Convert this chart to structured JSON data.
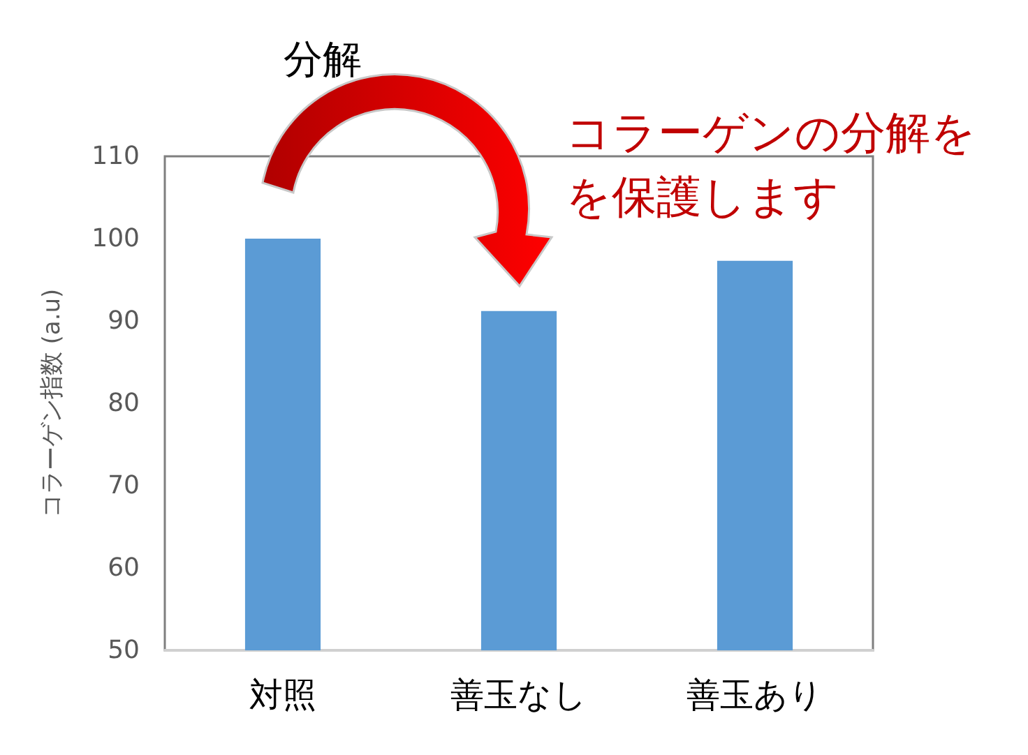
{
  "chart_data": {
    "type": "bar",
    "ylabel": "コラーゲン指数 (a.u)",
    "categories": [
      "対照",
      "善玉なし",
      "善玉あり"
    ],
    "values": [
      100,
      91.2,
      97.3
    ],
    "color": "#5b9bd5",
    "ylim": [
      50,
      110
    ],
    "yticks": [
      50,
      60,
      70,
      80,
      90,
      100,
      110
    ],
    "annotations": [
      "分解",
      "コラーゲンの分解を",
      "を保護します"
    ]
  }
}
